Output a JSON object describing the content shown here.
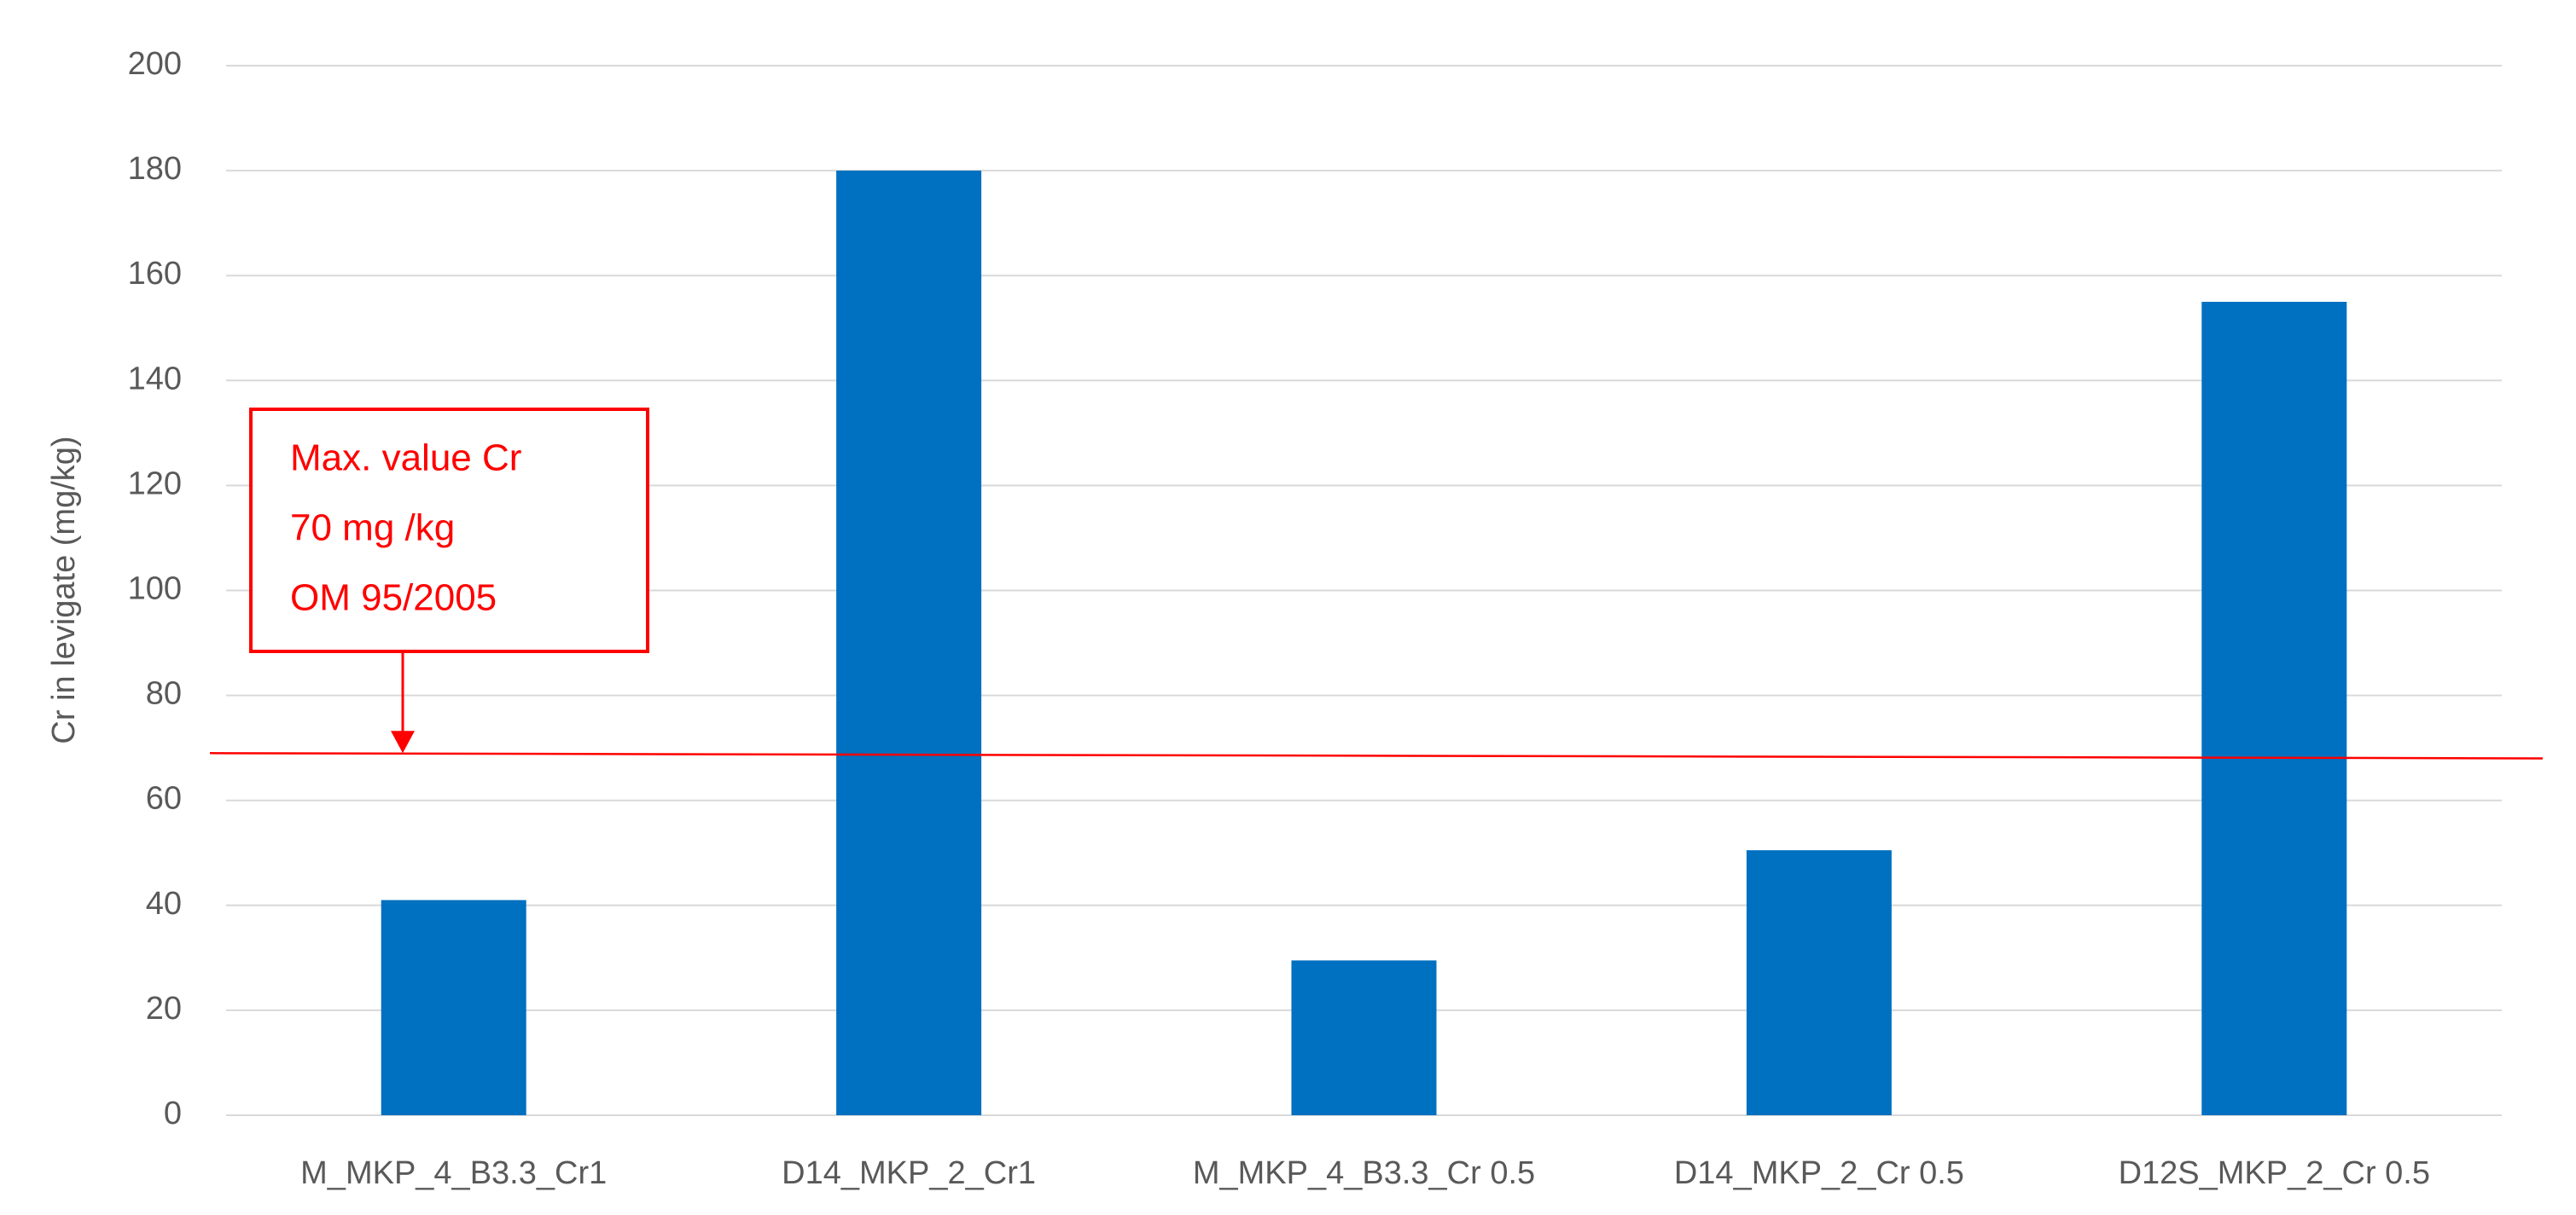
{
  "chart_data": {
    "type": "bar",
    "y_label": "Cr in levigate (mg/kg)",
    "categories": [
      "M_MKP_4_B3.3_Cr1",
      "D14_MKP_2_Cr1",
      "M_MKP_4_B3.3_Cr 0.5",
      "D14_MKP_2_Cr 0.5",
      "D12S_MKP_2_Cr 0.5"
    ],
    "values": [
      41,
      180,
      29.5,
      50.5,
      155
    ],
    "color": "#0070c0",
    "ylim": [
      0,
      200
    ],
    "yticks": [
      0,
      20,
      40,
      60,
      80,
      100,
      120,
      140,
      160,
      180,
      200
    ],
    "grid": true,
    "threshold_line": [
      69,
      68
    ],
    "threshold_color": "#ff0000",
    "annotation": [
      "Max. value Cr",
      "70 mg /kg",
      "OM 95/2005"
    ]
  }
}
